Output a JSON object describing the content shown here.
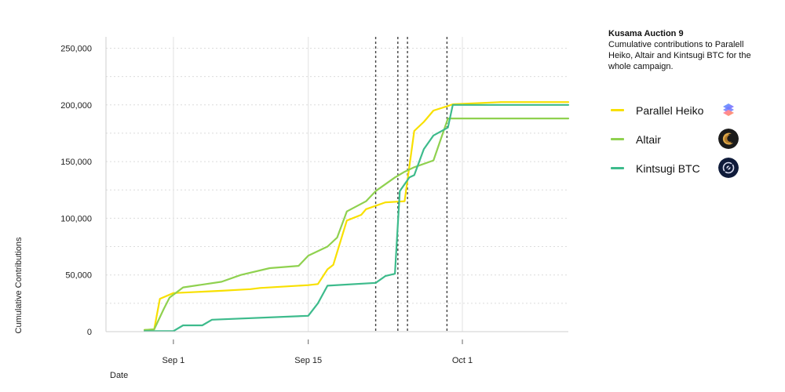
{
  "side": {
    "title": "Kusama Auction 9",
    "subtitle": "Cumulative contributions to Paralell Heiko, Altair and Kintsugi BTC for the whole campaign."
  },
  "legend": [
    {
      "label": "Parallel Heiko",
      "color": "#f8e000",
      "icon": "parallel-heiko-logo-icon"
    },
    {
      "label": "Altair",
      "color": "#8fd14f",
      "icon": "altair-logo-icon"
    },
    {
      "label": "Kintsugi BTC",
      "color": "#3dbb8c",
      "icon": "kintsugi-logo-icon"
    }
  ],
  "chart_data": {
    "type": "line",
    "xlabel": "Date",
    "ylabel": "Cumulative Contributions",
    "x_axis": {
      "type": "date",
      "range": [
        "2021-08-25",
        "2021-10-12"
      ]
    },
    "ylim": [
      0,
      260000
    ],
    "yticks": [
      0,
      50000,
      100000,
      150000,
      200000,
      250000
    ],
    "ytick_labels": [
      "0",
      "50,000",
      "100,000",
      "150,000",
      "200,000",
      "250,000"
    ],
    "xticks": [
      {
        "date": "2021-09-01",
        "label": "Sep 1"
      },
      {
        "date": "2021-09-15",
        "label": "Sep 15"
      },
      {
        "date": "2021-10-01",
        "label": "Oct 1"
      }
    ],
    "grid": true,
    "vlines_dashed": [
      "2021-09-22",
      "2021-09-24.3",
      "2021-09-25.3",
      "2021-09-29.4"
    ],
    "series": [
      {
        "name": "Parallel Heiko",
        "color": "#f8e000",
        "points": [
          [
            "2021-08-29",
            1500
          ],
          [
            "2021-08-30",
            2000
          ],
          [
            "2021-08-30.6",
            29000
          ],
          [
            "2021-09-01",
            34000
          ],
          [
            "2021-09-06",
            36000
          ],
          [
            "2021-09-09",
            37500
          ],
          [
            "2021-09-10",
            38500
          ],
          [
            "2021-09-15",
            41000
          ],
          [
            "2021-09-16",
            42000
          ],
          [
            "2021-09-17",
            55000
          ],
          [
            "2021-09-17.6",
            59000
          ],
          [
            "2021-09-19",
            98000
          ],
          [
            "2021-09-20.5",
            103000
          ],
          [
            "2021-09-21",
            108000
          ],
          [
            "2021-09-23",
            114000
          ],
          [
            "2021-09-25",
            115000
          ],
          [
            "2021-09-26",
            177000
          ],
          [
            "2021-09-27",
            185000
          ],
          [
            "2021-09-28",
            195000
          ],
          [
            "2021-09-29.5",
            199000
          ],
          [
            "2021-09-30",
            200500
          ],
          [
            "2021-10-05",
            202500
          ],
          [
            "2021-10-12",
            202500
          ]
        ]
      },
      {
        "name": "Altair",
        "color": "#8fd14f",
        "points": [
          [
            "2021-08-29",
            1500
          ],
          [
            "2021-08-30",
            2000
          ],
          [
            "2021-08-31",
            20000
          ],
          [
            "2021-08-31.6",
            30000
          ],
          [
            "2021-09-02",
            39000
          ],
          [
            "2021-09-06",
            44000
          ],
          [
            "2021-09-08",
            50000
          ],
          [
            "2021-09-11",
            56000
          ],
          [
            "2021-09-14",
            58000
          ],
          [
            "2021-09-15",
            67000
          ],
          [
            "2021-09-17",
            75000
          ],
          [
            "2021-09-18",
            83000
          ],
          [
            "2021-09-19",
            106000
          ],
          [
            "2021-09-21",
            115000
          ],
          [
            "2021-09-22",
            124000
          ],
          [
            "2021-09-24",
            136000
          ],
          [
            "2021-09-25",
            141000
          ],
          [
            "2021-09-26",
            145000
          ],
          [
            "2021-09-28",
            151000
          ],
          [
            "2021-09-29.5",
            188000
          ],
          [
            "2021-10-12",
            188000
          ]
        ]
      },
      {
        "name": "Kintsugi BTC",
        "color": "#3dbb8c",
        "points": [
          [
            "2021-08-29",
            500
          ],
          [
            "2021-09-01",
            500
          ],
          [
            "2021-09-02",
            5500
          ],
          [
            "2021-09-04",
            5500
          ],
          [
            "2021-09-05",
            10500
          ],
          [
            "2021-09-15",
            14000
          ],
          [
            "2021-09-16",
            25000
          ],
          [
            "2021-09-17",
            40500
          ],
          [
            "2021-09-22",
            43000
          ],
          [
            "2021-09-23",
            49000
          ],
          [
            "2021-09-24",
            51000
          ],
          [
            "2021-09-24.5",
            124000
          ],
          [
            "2021-09-25.5",
            136000
          ],
          [
            "2021-09-26",
            138000
          ],
          [
            "2021-09-27",
            161000
          ],
          [
            "2021-09-28",
            173000
          ],
          [
            "2021-09-29.5",
            180000
          ],
          [
            "2021-09-30",
            200000
          ],
          [
            "2021-10-12",
            200000
          ]
        ]
      }
    ]
  }
}
